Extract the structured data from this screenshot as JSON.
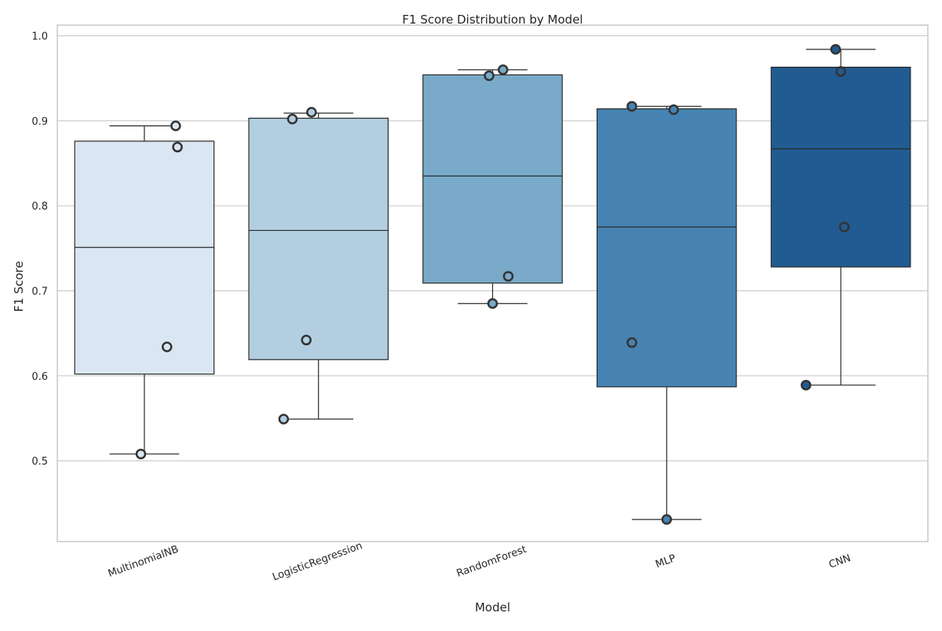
{
  "chart_data": {
    "type": "box",
    "title": "F1 Score Distribution by Model",
    "xlabel": "Model",
    "ylabel": "F1 Score",
    "ylim": [
      0.405,
      1.0125
    ],
    "yticks": [
      0.5,
      0.6,
      0.7,
      0.8,
      0.9,
      1.0
    ],
    "ytick_labels": [
      "0.5",
      "0.6",
      "0.7",
      "0.8",
      "0.9",
      "1.0"
    ],
    "grid": true,
    "x_tick_rotation_deg": -20,
    "categories": [
      "MultinomialNB",
      "LogisticRegression",
      "RandomForest",
      "MLP",
      "CNN"
    ],
    "boxes": [
      {
        "name": "MultinomialNB",
        "whisker_low": 0.508,
        "q1": 0.602,
        "median": 0.751,
        "q3": 0.876,
        "whisker_high": 0.894,
        "color": "#dae6f2"
      },
      {
        "name": "LogisticRegression",
        "whisker_low": 0.549,
        "q1": 0.619,
        "median": 0.771,
        "q3": 0.903,
        "whisker_high": 0.909,
        "color": "#b3cee1"
      },
      {
        "name": "RandomForest",
        "whisker_low": 0.685,
        "q1": 0.709,
        "median": 0.835,
        "q3": 0.954,
        "whisker_high": 0.96,
        "color": "#79aac9"
      },
      {
        "name": "MLP",
        "whisker_low": 0.431,
        "q1": 0.587,
        "median": 0.775,
        "q3": 0.914,
        "whisker_high": 0.917,
        "color": "#4783b2"
      },
      {
        "name": "CNN",
        "whisker_low": 0.589,
        "q1": 0.728,
        "median": 0.867,
        "q3": 0.963,
        "whisker_high": 0.984,
        "color": "#215b91"
      }
    ],
    "points": [
      {
        "category": "MultinomialNB",
        "values": [
          0.508,
          0.634,
          0.869,
          0.894
        ],
        "jitter": [
          -0.02,
          0.13,
          0.19,
          0.18
        ]
      },
      {
        "category": "LogisticRegression",
        "values": [
          0.549,
          0.642,
          0.902,
          0.91
        ],
        "jitter": [
          -0.2,
          -0.07,
          -0.15,
          -0.04
        ]
      },
      {
        "category": "RandomForest",
        "values": [
          0.685,
          0.717,
          0.953,
          0.96
        ],
        "jitter": [
          0.0,
          0.09,
          -0.02,
          0.06
        ]
      },
      {
        "category": "MLP",
        "values": [
          0.431,
          0.639,
          0.913,
          0.917
        ],
        "jitter": [
          0.0,
          -0.2,
          0.04,
          -0.2
        ]
      },
      {
        "category": "CNN",
        "values": [
          0.589,
          0.775,
          0.958,
          0.984
        ],
        "jitter": [
          -0.2,
          0.02,
          0.0,
          -0.03
        ]
      }
    ]
  }
}
